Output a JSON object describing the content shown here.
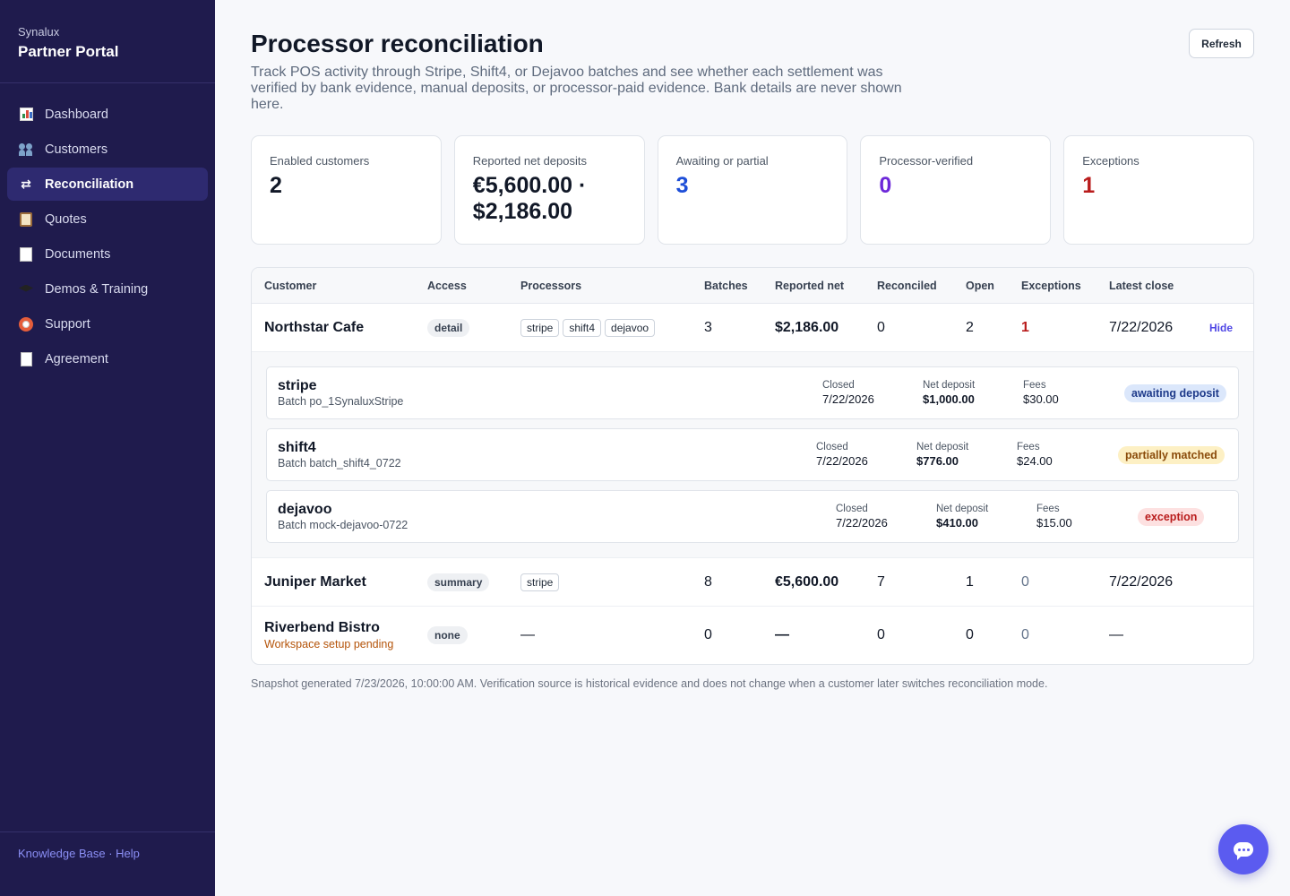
{
  "sidebar": {
    "brand_sub": "Synalux",
    "brand_title": "Partner Portal",
    "items": [
      {
        "label": "Dashboard",
        "icon": "bar-chart-icon"
      },
      {
        "label": "Customers",
        "icon": "people-icon"
      },
      {
        "label": "Reconciliation",
        "icon": "arrows-icon",
        "active": true
      },
      {
        "label": "Quotes",
        "icon": "clipboard-icon"
      },
      {
        "label": "Documents",
        "icon": "memo-icon"
      },
      {
        "label": "Demos & Training",
        "icon": "graduation-cap-icon"
      },
      {
        "label": "Support",
        "icon": "lifebuoy-icon"
      },
      {
        "label": "Agreement",
        "icon": "page-icon"
      }
    ],
    "footer": {
      "knowledge_base": "Knowledge Base",
      "separator": " · ",
      "help": "Help"
    }
  },
  "header": {
    "title": "Processor reconciliation",
    "description": "Track POS activity through Stripe, Shift4, or Dejavoo batches and see whether each settlement was verified by bank evidence, manual deposits, or processor-paid evidence. Bank details are never shown here.",
    "refresh_label": "Refresh"
  },
  "stats": [
    {
      "label": "Enabled customers",
      "value": "2",
      "color": "#111827"
    },
    {
      "label": "Reported net deposits",
      "value": "€5,600.00 · $2,186.00",
      "color": "#111827"
    },
    {
      "label": "Awaiting or partial",
      "value": "3",
      "color": "#1d4ed8"
    },
    {
      "label": "Processor-verified",
      "value": "0",
      "color": "#6d28d9"
    },
    {
      "label": "Exceptions",
      "value": "1",
      "color": "#b91c1c"
    }
  ],
  "table": {
    "headers": [
      "Customer",
      "Access",
      "Processors",
      "Batches",
      "Reported net",
      "Reconciled",
      "Open",
      "Exceptions",
      "Latest close"
    ],
    "rows": [
      {
        "customer": "Northstar Cafe",
        "access": "detail",
        "processors": [
          "stripe",
          "shift4",
          "dejavoo"
        ],
        "batches": "3",
        "reported_net": "$2,186.00",
        "reconciled": "0",
        "open": "2",
        "exceptions": "1",
        "latest_close": "7/22/2026",
        "action": "Hide",
        "details": [
          {
            "name": "stripe",
            "batch": "Batch po_1SynaluxStripe",
            "closed_label": "Closed",
            "closed": "7/22/2026",
            "net_label": "Net deposit",
            "net": "$1,000.00",
            "fees_label": "Fees",
            "fees": "$30.00",
            "status": "awaiting deposit",
            "status_bg": "#dbe7fb",
            "status_fg": "#1e3a8a"
          },
          {
            "name": "shift4",
            "batch": "Batch batch_shift4_0722",
            "closed_label": "Closed",
            "closed": "7/22/2026",
            "net_label": "Net deposit",
            "net": "$776.00",
            "fees_label": "Fees",
            "fees": "$24.00",
            "status": "partially matched",
            "status_bg": "#fdf0c4",
            "status_fg": "#8a4b0a"
          },
          {
            "name": "dejavoo",
            "batch": "Batch mock-dejavoo-0722",
            "closed_label": "Closed",
            "closed": "7/22/2026",
            "net_label": "Net deposit",
            "net": "$410.00",
            "fees_label": "Fees",
            "fees": "$15.00",
            "status": "exception",
            "status_bg": "#fde1e1",
            "status_fg": "#b91c1c"
          }
        ]
      },
      {
        "customer": "Juniper Market",
        "access": "summary",
        "processors": [
          "stripe"
        ],
        "batches": "8",
        "reported_net": "€5,600.00",
        "reconciled": "7",
        "open": "1",
        "exceptions": "0",
        "latest_close": "7/22/2026"
      },
      {
        "customer": "Riverbend Bistro",
        "sub": "Workspace setup pending",
        "access": "none",
        "processors_text": "—",
        "batches": "0",
        "reported_net": "—",
        "reconciled": "0",
        "open": "0",
        "exceptions": "0",
        "latest_close": "—"
      }
    ]
  },
  "footnote": "Snapshot generated 7/23/2026, 10:00:00 AM. Verification source is historical evidence and does not change when a customer later switches reconciliation mode.",
  "chat": {
    "icon": "chat-bubble-icon"
  }
}
